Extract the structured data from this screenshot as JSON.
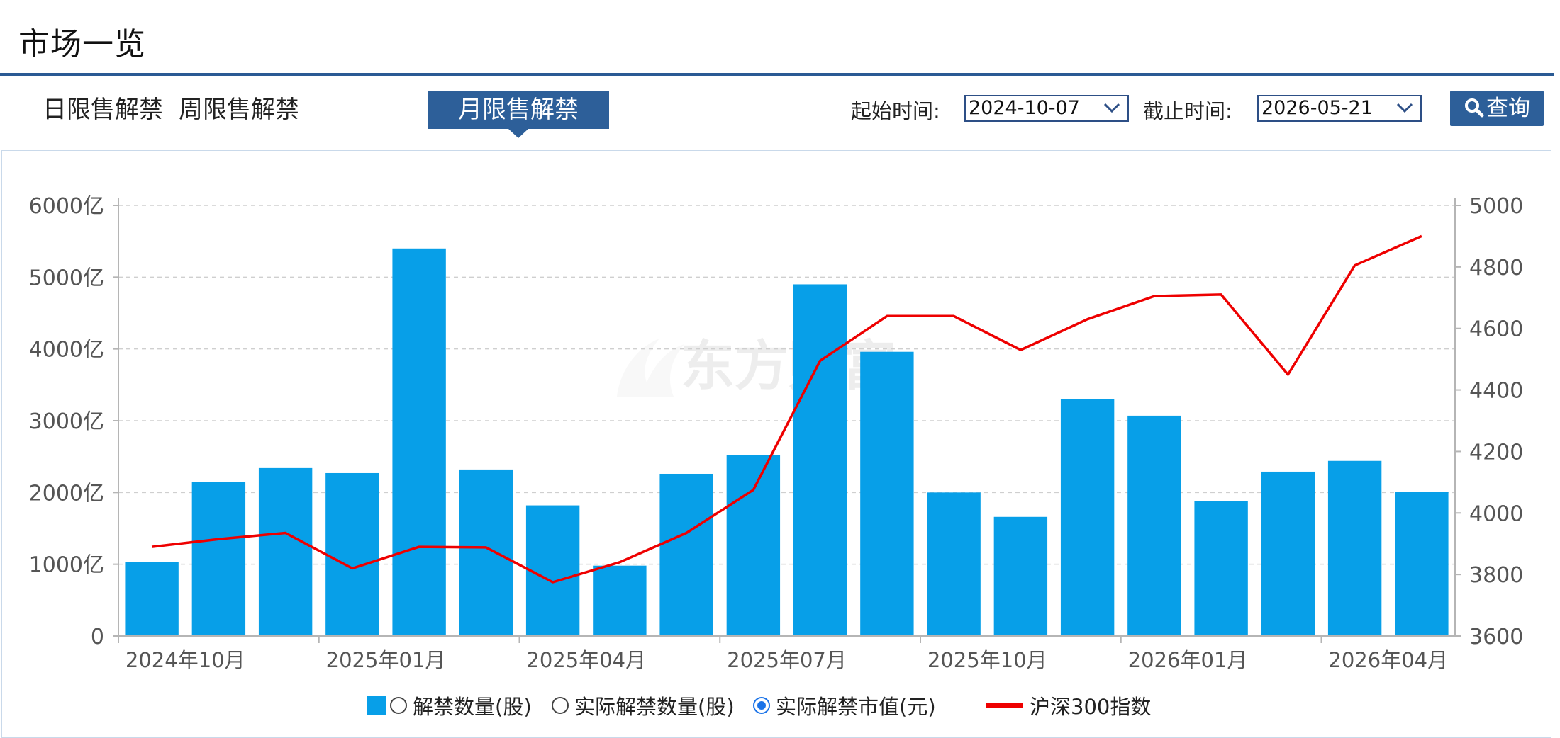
{
  "page": {
    "title": "市场一览"
  },
  "tabs": [
    {
      "label": "日限售解禁",
      "active": false
    },
    {
      "label": "周限售解禁",
      "active": false
    },
    {
      "label": "月限售解禁",
      "active": true
    }
  ],
  "filters": {
    "start_label": "起始时间:",
    "start_value": "2024-10-07",
    "end_label": "截止时间:",
    "end_value": "2026-05-21",
    "query_label": "查询",
    "query_icon": "search-icon"
  },
  "colors": {
    "accent": "#2d5f99",
    "bar": "#079fe8",
    "line": "#ee0000"
  },
  "legend": {
    "bar_series_label": "解禁数量(股)",
    "option2_label": "实际解禁数量(股)",
    "option3_label": "实际解禁市值(元)",
    "line_series_label": "沪深300指数",
    "selected_option": 3
  },
  "watermark": "东方财富",
  "chart_data": {
    "type": "bar",
    "x_ticks": [
      "2024年10月",
      "2025年01月",
      "2025年04月",
      "2025年07月",
      "2025年10月",
      "2026年01月",
      "2026年04月"
    ],
    "categories": [
      "2024-10",
      "2024-11",
      "2024-12",
      "2025-01",
      "2025-02",
      "2025-03",
      "2025-04",
      "2025-05",
      "2025-06",
      "2025-07",
      "2025-08",
      "2025-09",
      "2025-10",
      "2025-11",
      "2025-12",
      "2026-01",
      "2026-02",
      "2026-03",
      "2026-04",
      "2026-05"
    ],
    "left_axis": {
      "ticks": [
        "0",
        "1000亿",
        "2000亿",
        "3000亿",
        "4000亿",
        "5000亿",
        "6000亿"
      ],
      "ylim": [
        0,
        6000
      ],
      "unit": "亿"
    },
    "right_axis": {
      "ticks": [
        "3600",
        "3800",
        "4000",
        "4200",
        "4400",
        "4600",
        "4800",
        "5000"
      ],
      "ylim": [
        3600,
        5000
      ]
    },
    "series": [
      {
        "name": "实际解禁市值(元)",
        "type": "bar",
        "axis": "left",
        "values": [
          1030,
          2150,
          2340,
          2270,
          5400,
          2320,
          1820,
          980,
          2260,
          2520,
          4900,
          3960,
          2000,
          1660,
          3300,
          3070,
          1880,
          2290,
          2440,
          2010
        ]
      },
      {
        "name": "沪深300指数",
        "type": "line",
        "axis": "right",
        "values": [
          3890,
          3915,
          3935,
          3820,
          3890,
          3888,
          3775,
          3840,
          3935,
          4075,
          4495,
          4640,
          4640,
          4530,
          4630,
          4705,
          4710,
          4450,
          4805,
          4900
        ]
      }
    ],
    "grid": true,
    "legend_position": "bottom"
  }
}
